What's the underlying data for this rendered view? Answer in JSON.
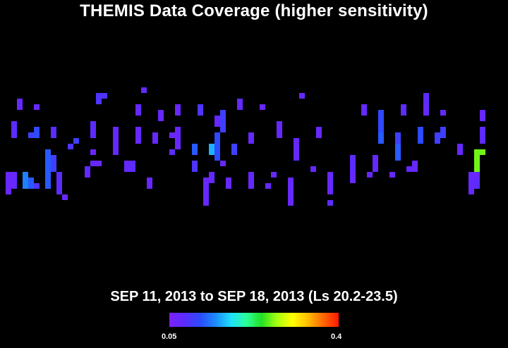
{
  "title": "THEMIS Data Coverage (higher sensitivity)",
  "subtitle": "SEP 11, 2013 to SEP 18, 2013 (Ls 20.2-23.5)",
  "colorbar": {
    "min_label": "0.05",
    "max_label": "0.4",
    "range": [
      0.05,
      0.4
    ],
    "colors": [
      "#7a22ff",
      "#5a2cff",
      "#2a4dff",
      "#1c8cff",
      "#1fe0ff",
      "#2bff9a",
      "#22e022",
      "#a6ff10",
      "#ffff00",
      "#ffc000",
      "#ff6a00",
      "#ff1c00"
    ]
  },
  "chart_data": {
    "type": "heatmap",
    "title": "THEMIS Data Coverage (higher sensitivity)",
    "subtitle": "SEP 11, 2013 to SEP 18, 2013 (Ls 20.2-23.5)",
    "value_range": [
      0.05,
      0.4
    ],
    "grid": false,
    "cells": [
      {
        "col": 3,
        "r0": 17,
        "r1": 18,
        "v": 0.07
      },
      {
        "col": 2,
        "r0": 21,
        "r1": 23,
        "v": 0.08
      },
      {
        "col": 2,
        "r0": 30,
        "r1": 32,
        "v": 0.07
      },
      {
        "col": 1,
        "r0": 30,
        "r1": 33,
        "v": 0.07
      },
      {
        "col": 4,
        "r0": 30,
        "r1": 32,
        "v": 0.14
      },
      {
        "col": 5,
        "r0": 31,
        "r1": 32,
        "v": 0.12
      },
      {
        "col": 6,
        "r0": 18,
        "r1": 18,
        "v": 0.07
      },
      {
        "col": 6,
        "r0": 22,
        "r1": 23,
        "v": 0.11
      },
      {
        "col": 5,
        "r0": 23,
        "r1": 23,
        "v": 0.1
      },
      {
        "col": 6,
        "r0": 32,
        "r1": 32,
        "v": 0.09
      },
      {
        "col": 8,
        "r0": 28,
        "r1": 32,
        "v": 0.12
      },
      {
        "col": 9,
        "r0": 27,
        "r1": 29,
        "v": 0.1
      },
      {
        "col": 9,
        "r0": 22,
        "r1": 23,
        "v": 0.08
      },
      {
        "col": 11,
        "r0": 34,
        "r1": 34,
        "v": 0.07
      },
      {
        "col": 12,
        "r0": 25,
        "r1": 25,
        "v": 0.09
      },
      {
        "col": 13,
        "r0": 24,
        "r1": 24,
        "v": 0.1
      },
      {
        "col": 15,
        "r0": 30,
        "r1": 30,
        "v": 0.07
      },
      {
        "col": 15,
        "r0": 29,
        "r1": 29,
        "v": 0.08
      },
      {
        "col": 16,
        "r0": 28,
        "r1": 28,
        "v": 0.07
      },
      {
        "col": 16,
        "r0": 21,
        "r1": 23,
        "v": 0.08
      },
      {
        "col": 16,
        "r0": 26,
        "r1": 26,
        "v": 0.07
      },
      {
        "col": 17,
        "r0": 16,
        "r1": 17,
        "v": 0.09
      },
      {
        "col": 18,
        "r0": 16,
        "r1": 16,
        "v": 0.09
      },
      {
        "col": 20,
        "r0": 22,
        "r1": 25,
        "v": 0.07
      },
      {
        "col": 20,
        "r0": 26,
        "r1": 26,
        "v": 0.07
      },
      {
        "col": 22,
        "r0": 28,
        "r1": 29,
        "v": 0.07
      },
      {
        "col": 23,
        "r0": 28,
        "r1": 29,
        "v": 0.08
      },
      {
        "col": 24,
        "r0": 18,
        "r1": 19,
        "v": 0.07
      },
      {
        "col": 24,
        "r0": 22,
        "r1": 24,
        "v": 0.07
      },
      {
        "col": 25,
        "r0": 15,
        "r1": 15,
        "v": 0.07
      },
      {
        "col": 26,
        "r0": 31,
        "r1": 32,
        "v": 0.07
      },
      {
        "col": 27,
        "r0": 23,
        "r1": 24,
        "v": 0.07
      },
      {
        "col": 28,
        "r0": 19,
        "r1": 20,
        "v": 0.07
      },
      {
        "col": 30,
        "r0": 26,
        "r1": 26,
        "v": 0.08
      },
      {
        "col": 30,
        "r0": 23,
        "r1": 23,
        "v": 0.07
      },
      {
        "col": 31,
        "r0": 18,
        "r1": 19,
        "v": 0.07
      },
      {
        "col": 31,
        "r0": 22,
        "r1": 24,
        "v": 0.07
      },
      {
        "col": 31,
        "r0": 25,
        "r1": 25,
        "v": 0.07
      },
      {
        "col": 34,
        "r0": 25,
        "r1": 26,
        "v": 0.12
      },
      {
        "col": 34,
        "r0": 28,
        "r1": 29,
        "v": 0.09
      },
      {
        "col": 35,
        "r0": 18,
        "r1": 19,
        "v": 0.09
      },
      {
        "col": 36,
        "r0": 31,
        "r1": 35,
        "v": 0.07
      },
      {
        "col": 37,
        "r0": 30,
        "r1": 31,
        "v": 0.07
      },
      {
        "col": 37,
        "r0": 25,
        "r1": 26,
        "v": 0.16
      },
      {
        "col": 38,
        "r0": 23,
        "r1": 27,
        "v": 0.11
      },
      {
        "col": 38,
        "r0": 20,
        "r1": 21,
        "v": 0.07
      },
      {
        "col": 39,
        "r0": 19,
        "r1": 22,
        "v": 0.1
      },
      {
        "col": 40,
        "r0": 31,
        "r1": 32,
        "v": 0.07
      },
      {
        "col": 39,
        "r0": 28,
        "r1": 28,
        "v": 0.07
      },
      {
        "col": 41,
        "r0": 25,
        "r1": 26,
        "v": 0.1
      },
      {
        "col": 42,
        "r0": 17,
        "r1": 18,
        "v": 0.07
      },
      {
        "col": 44,
        "r0": 30,
        "r1": 32,
        "v": 0.07
      },
      {
        "col": 44,
        "r0": 23,
        "r1": 24,
        "v": 0.07
      },
      {
        "col": 46,
        "r0": 18,
        "r1": 18,
        "v": 0.07
      },
      {
        "col": 47,
        "r0": 32,
        "r1": 32,
        "v": 0.07
      },
      {
        "col": 48,
        "r0": 30,
        "r1": 30,
        "v": 0.07
      },
      {
        "col": 49,
        "r0": 21,
        "r1": 23,
        "v": 0.07
      },
      {
        "col": 51,
        "r0": 31,
        "r1": 35,
        "v": 0.07
      },
      {
        "col": 52,
        "r0": 24,
        "r1": 26,
        "v": 0.07
      },
      {
        "col": 52,
        "r0": 26,
        "r1": 27,
        "v": 0.07
      },
      {
        "col": 53,
        "r0": 16,
        "r1": 16,
        "v": 0.07
      },
      {
        "col": 55,
        "r0": 29,
        "r1": 29,
        "v": 0.07
      },
      {
        "col": 56,
        "r0": 22,
        "r1": 23,
        "v": 0.07
      },
      {
        "col": 58,
        "r0": 30,
        "r1": 33,
        "v": 0.07
      },
      {
        "col": 58,
        "r0": 35,
        "r1": 35,
        "v": 0.08
      },
      {
        "col": 62,
        "r0": 27,
        "r1": 29,
        "v": 0.08
      },
      {
        "col": 62,
        "r0": 30,
        "r1": 31,
        "v": 0.07
      },
      {
        "col": 64,
        "r0": 18,
        "r1": 19,
        "v": 0.07
      },
      {
        "col": 65,
        "r0": 30,
        "r1": 30,
        "v": 0.07
      },
      {
        "col": 66,
        "r0": 27,
        "r1": 29,
        "v": 0.07
      },
      {
        "col": 67,
        "r0": 19,
        "r1": 22,
        "v": 0.11
      },
      {
        "col": 67,
        "r0": 23,
        "r1": 24,
        "v": 0.12
      },
      {
        "col": 69,
        "r0": 30,
        "r1": 30,
        "v": 0.07
      },
      {
        "col": 70,
        "r0": 23,
        "r1": 24,
        "v": 0.1
      },
      {
        "col": 70,
        "r0": 25,
        "r1": 27,
        "v": 0.12
      },
      {
        "col": 71,
        "r0": 18,
        "r1": 19,
        "v": 0.08
      },
      {
        "col": 72,
        "r0": 29,
        "r1": 29,
        "v": 0.07
      },
      {
        "col": 73,
        "r0": 28,
        "r1": 29,
        "v": 0.07
      },
      {
        "col": 74,
        "r0": 22,
        "r1": 24,
        "v": 0.11
      },
      {
        "col": 75,
        "r0": 16,
        "r1": 17,
        "v": 0.08
      },
      {
        "col": 75,
        "r0": 18,
        "r1": 19,
        "v": 0.07
      },
      {
        "col": 77,
        "r0": 23,
        "r1": 24,
        "v": 0.1
      },
      {
        "col": 78,
        "r0": 19,
        "r1": 19,
        "v": 0.07
      },
      {
        "col": 78,
        "r0": 22,
        "r1": 23,
        "v": 0.1
      },
      {
        "col": 84,
        "r0": 26,
        "r1": 27,
        "v": 0.26
      },
      {
        "col": 85,
        "r0": 26,
        "r1": 26,
        "v": 0.26
      },
      {
        "col": 84,
        "r0": 28,
        "r1": 29,
        "v": 0.26
      },
      {
        "col": 81,
        "r0": 25,
        "r1": 26,
        "v": 0.07
      },
      {
        "col": 84,
        "r0": 31,
        "r1": 32,
        "v": 0.08
      },
      {
        "col": 83,
        "r0": 30,
        "r1": 33,
        "v": 0.07
      },
      {
        "col": 84,
        "r0": 30,
        "r1": 30,
        "v": 0.07
      },
      {
        "col": 85,
        "r0": 19,
        "r1": 20,
        "v": 0.07
      },
      {
        "col": 85,
        "r0": 22,
        "r1": 24,
        "v": 0.08
      },
      {
        "col": 17,
        "r0": 28,
        "r1": 28,
        "v": 0.07
      },
      {
        "col": 10,
        "r0": 30,
        "r1": 33,
        "v": 0.08
      },
      {
        "col": 8,
        "r0": 26,
        "r1": 27,
        "v": 0.12
      }
    ]
  }
}
